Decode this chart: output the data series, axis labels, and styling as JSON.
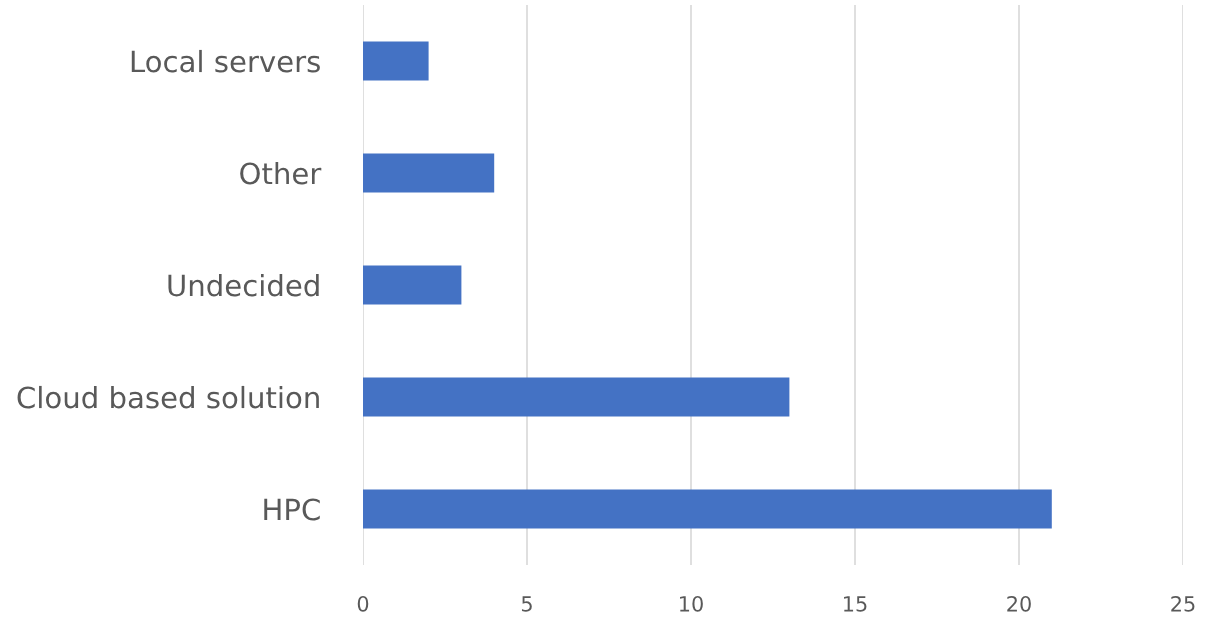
{
  "chart_data": {
    "type": "bar",
    "orientation": "horizontal",
    "categories": [
      "Local servers",
      "Other",
      "Undecided",
      "Cloud based solution",
      "HPC"
    ],
    "values": [
      2,
      4,
      3,
      13,
      21
    ],
    "color": "#4472c4",
    "xlim": [
      0,
      25
    ],
    "xticks": [
      0,
      5,
      10,
      15,
      20,
      25
    ],
    "grid": "x"
  }
}
